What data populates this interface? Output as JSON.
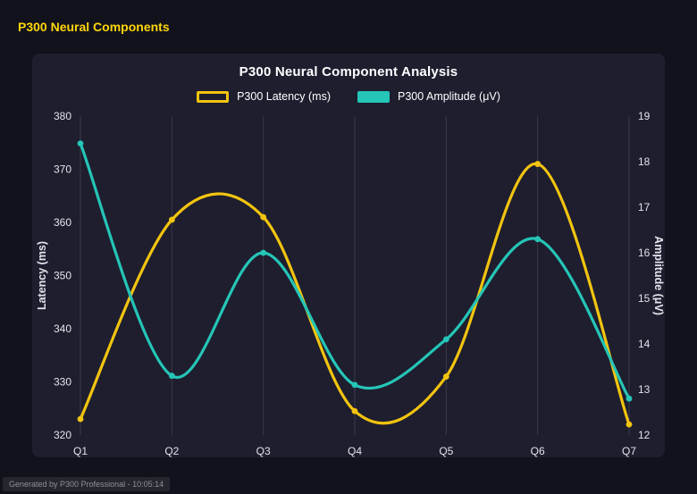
{
  "page": {
    "title": "P300 Neural Components",
    "title_color": "#ffd60a",
    "footer": "Generated by P300 Professional - 10:05:14"
  },
  "chart_data": {
    "type": "line",
    "title": "P300 Neural Component Analysis",
    "categories": [
      "Q1",
      "Q2",
      "Q3",
      "Q4",
      "Q5",
      "Q6",
      "Q7"
    ],
    "series": [
      {
        "name": "P300 Latency (ms)",
        "axis": "left",
        "color": "#f2c40f",
        "swatch_style": "outline",
        "values": [
          323,
          360.5,
          361,
          324.5,
          331,
          371,
          322
        ]
      },
      {
        "name": "P300 Amplitude (μV)",
        "axis": "right",
        "color": "#25c5b7",
        "swatch_style": "solid",
        "values": [
          18.4,
          13.3,
          16.0,
          13.1,
          14.1,
          16.3,
          12.8
        ]
      }
    ],
    "left_axis": {
      "label": "Latency (ms)",
      "min": 320,
      "max": 380,
      "step": 10
    },
    "right_axis": {
      "label": "Amplitude (μV)",
      "min": 12,
      "max": 19,
      "step": 1
    },
    "grid": "vertical",
    "legend_position": "top",
    "text_color": "#e4e4ec",
    "grid_color": "#ffffff"
  }
}
